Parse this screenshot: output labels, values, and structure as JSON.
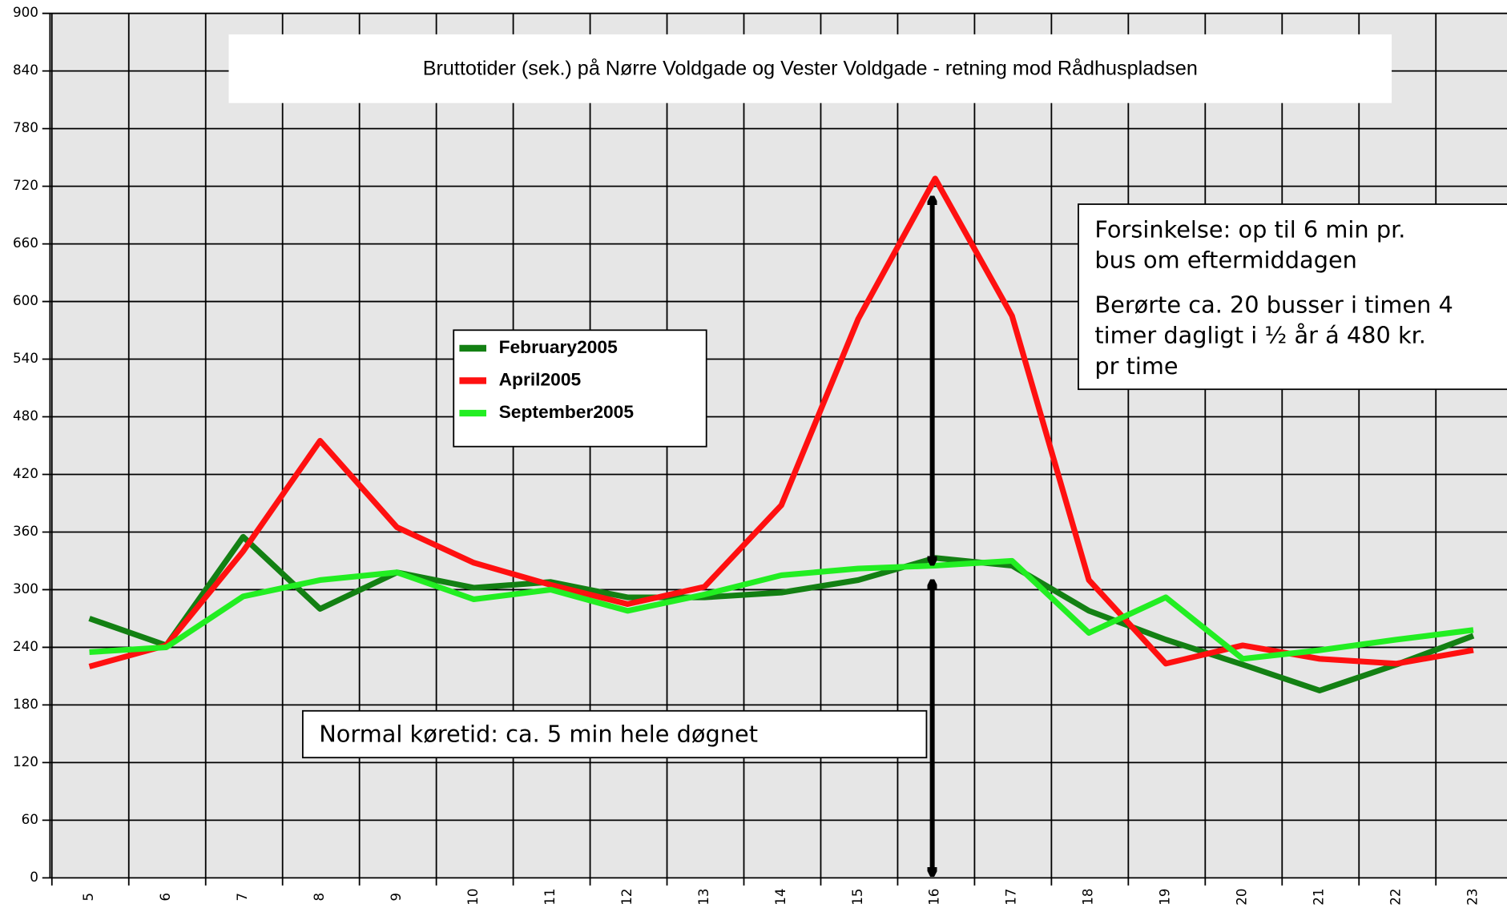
{
  "chart_data": {
    "type": "line",
    "title": "Bruttotider (sek.) på Nørre Voldgade og Vester Voldgade - retning mod Rådhuspladsen",
    "categories": [
      "5",
      "6",
      "7",
      "8",
      "9",
      "10",
      "11",
      "12",
      "13",
      "14",
      "15",
      "16",
      "17",
      "18",
      "19",
      "20",
      "21",
      "22",
      "23"
    ],
    "series": [
      {
        "name": "February2005",
        "color": "#138013",
        "values": [
          270,
          242,
          355,
          280,
          318,
          302,
          308,
          292,
          292,
          297,
          310,
          333,
          325,
          278,
          248,
          222,
          195,
          222,
          252
        ]
      },
      {
        "name": "April2005",
        "color": "#ff1010",
        "values": [
          220,
          242,
          340,
          455,
          365,
          328,
          305,
          285,
          303,
          388,
          582,
          728,
          585,
          310,
          223,
          242,
          228,
          223,
          237
        ]
      },
      {
        "name": "September2005",
        "color": "#22ee22",
        "values": [
          235,
          240,
          293,
          310,
          318,
          290,
          300,
          278,
          295,
          315,
          322,
          325,
          330,
          255,
          292,
          228,
          237,
          248,
          258
        ]
      }
    ],
    "ylim": [
      0,
      900
    ],
    "yticks": [
      0,
      60,
      120,
      180,
      240,
      300,
      360,
      420,
      480,
      540,
      600,
      660,
      720,
      780,
      840,
      900
    ],
    "grid": true,
    "annotations": [
      {
        "lines": [
          "Forsinkelse: op til 6 min pr.",
          "bus om eftermiddagen"
        ]
      },
      {
        "lines": [
          "Berørte ca. 20 busser i timen 4",
          "timer dagligt i ½ år á 480 kr.",
          "pr time"
        ]
      },
      {
        "lines": [
          "Normal køretid: ca. 5 min hele døgnet"
        ]
      }
    ]
  }
}
